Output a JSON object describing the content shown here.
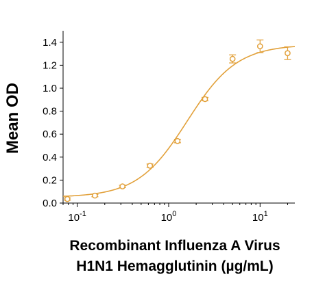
{
  "colors": {
    "series": "#E2A13B",
    "axis": "#000000"
  },
  "chart_data": {
    "type": "scatter",
    "title": "",
    "ylabel": "Mean OD",
    "xlabel_lines": [
      "Recombinant Influenza A Virus",
      "H1N1 Hemagglutinin (µg/mL)"
    ],
    "x_scale": "log10",
    "xlim": [
      0.07,
      24
    ],
    "ylim": [
      0,
      1.5
    ],
    "yticks": [
      0.0,
      0.2,
      0.4,
      0.6,
      0.8,
      1.0,
      1.2,
      1.4
    ],
    "ytick_labels": [
      "0.0",
      "0.2",
      "0.4",
      "0.6",
      "0.8",
      "1.0",
      "1.2",
      "1.4"
    ],
    "xticks": [
      {
        "value": 0.1,
        "base": "10",
        "exp": "-1"
      },
      {
        "value": 1,
        "base": "10",
        "exp": "0"
      },
      {
        "value": 10,
        "base": "10",
        "exp": "1"
      }
    ],
    "grid": false,
    "legend": "none",
    "series": [
      {
        "marker": "open-circle",
        "x": [
          0.078,
          0.156,
          0.3125,
          0.625,
          1.25,
          2.5,
          5,
          10,
          20
        ],
        "y": [
          0.035,
          0.065,
          0.145,
          0.325,
          0.54,
          0.905,
          1.255,
          1.365,
          1.305
        ],
        "err": [
          0.01,
          0.01,
          0.01,
          0.015,
          0.015,
          0.015,
          0.035,
          0.055,
          0.055
        ]
      }
    ],
    "fit": {
      "model": "4PL",
      "bottom": 0.05,
      "top": 1.38,
      "ec50": 1.6,
      "hill": 1.6
    }
  }
}
